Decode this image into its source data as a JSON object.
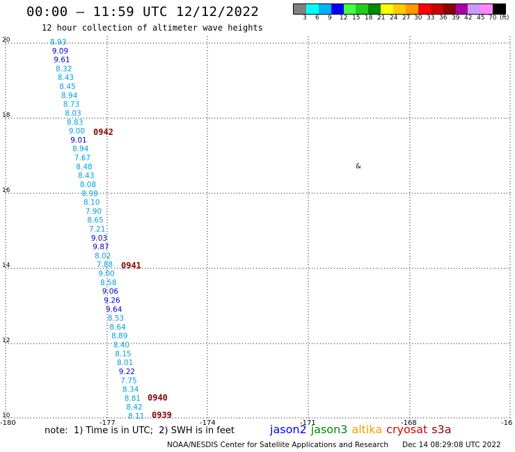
{
  "header": {
    "title": "00:00 – 11:59 UTC 12/12/2022",
    "subtitle": "12 hour collection of altimeter wave heights"
  },
  "legend": {
    "colors": [
      "#808080",
      "#00ffff",
      "#00b4ff",
      "#0000ff",
      "#44ff44",
      "#22cc22",
      "#008800",
      "#ffff00",
      "#ffcc00",
      "#ff9900",
      "#ff0000",
      "#cc0000",
      "#880000",
      "#aa00aa",
      "#cc99ff",
      "#ff88ff",
      "#000000"
    ],
    "labels": [
      "3",
      "6",
      "9",
      "12",
      "15",
      "18",
      "21",
      "24",
      "27",
      "30",
      "33",
      "36",
      "39",
      "42",
      "45",
      "70",
      "(ft)"
    ]
  },
  "axes": {
    "x_ticks": [
      "-180",
      "-177",
      "-174",
      "-171",
      "-168",
      "-16"
    ],
    "y_ticks": [
      "20",
      "18",
      "16",
      "14",
      "12",
      "10"
    ]
  },
  "measurements": [
    {
      "value": "8.93",
      "color": "#00a0e0"
    },
    {
      "value": "9.09",
      "color": "#0000cc"
    },
    {
      "value": "9.61",
      "color": "#0000cc"
    },
    {
      "value": "8.32",
      "color": "#00a0e0"
    },
    {
      "value": "8.43",
      "color": "#00a0e0"
    },
    {
      "value": "8.45",
      "color": "#00a0e0"
    },
    {
      "value": "8.94",
      "color": "#00a0e0"
    },
    {
      "value": "8.73",
      "color": "#00a0e0"
    },
    {
      "value": "8.03",
      "color": "#00a0e0"
    },
    {
      "value": "8.83",
      "color": "#00a0e0"
    },
    {
      "value": "9.00",
      "color": "#00a0e0"
    },
    {
      "value": "9.01",
      "color": "#0000cc"
    },
    {
      "value": "8.94",
      "color": "#00a0e0"
    },
    {
      "value": "7.67",
      "color": "#00a0e0"
    },
    {
      "value": "8.48",
      "color": "#00a0e0"
    },
    {
      "value": "8.43",
      "color": "#00a0e0"
    },
    {
      "value": "8.08",
      "color": "#00a0e0"
    },
    {
      "value": "8.98",
      "color": "#00a0e0"
    },
    {
      "value": "8.10",
      "color": "#00a0e0"
    },
    {
      "value": "7.90",
      "color": "#00a0e0"
    },
    {
      "value": "8.65",
      "color": "#00a0e0"
    },
    {
      "value": "7.21",
      "color": "#00a0e0"
    },
    {
      "value": "9.03",
      "color": "#0000cc"
    },
    {
      "value": "9.87",
      "color": "#0000cc"
    },
    {
      "value": "8.02",
      "color": "#00a0e0"
    },
    {
      "value": "7.88",
      "color": "#00a0e0"
    },
    {
      "value": "9.00",
      "color": "#00a0e0"
    },
    {
      "value": "8.58",
      "color": "#00a0e0"
    },
    {
      "value": "9.06",
      "color": "#0000cc"
    },
    {
      "value": "9.26",
      "color": "#0000cc"
    },
    {
      "value": "9.64",
      "color": "#0000cc"
    },
    {
      "value": "8.53",
      "color": "#00a0e0"
    },
    {
      "value": "8.64",
      "color": "#00a0e0"
    },
    {
      "value": "8.89",
      "color": "#00a0e0"
    },
    {
      "value": "8.40",
      "color": "#00a0e0"
    },
    {
      "value": "8.15",
      "color": "#00a0e0"
    },
    {
      "value": "8.01",
      "color": "#00a0e0"
    },
    {
      "value": "9.22",
      "color": "#0000cc"
    },
    {
      "value": "7.75",
      "color": "#00a0e0"
    },
    {
      "value": "8.34",
      "color": "#00a0e0"
    },
    {
      "value": "8.81",
      "color": "#00a0e0"
    },
    {
      "value": "8.42",
      "color": "#00a0e0"
    },
    {
      "value": "8.11",
      "color": "#00a0e0"
    }
  ],
  "time_labels": [
    {
      "text": "0942",
      "color": "#880000"
    },
    {
      "text": "0941",
      "color": "#880000"
    },
    {
      "text": "0940",
      "color": "#880000"
    },
    {
      "text": "0939",
      "color": "#880000"
    }
  ],
  "island_marker": "&",
  "footer": {
    "note": "note:  1) Time is in UTC;  2) SWH is in feet",
    "satellites": [
      {
        "name": "jason2",
        "color": "#0000ff"
      },
      {
        "name": "jason3",
        "color": "#008800"
      },
      {
        "name": "altika",
        "color": "#ff9900"
      },
      {
        "name": "cryosat",
        "color": "#dd0000"
      },
      {
        "name": "s3a",
        "color": "#880000"
      }
    ],
    "credit": "NOAA/NESDIS Center for Satellite Applications and Research",
    "timestamp": "Dec 14 08:29:08 UTC 2022"
  }
}
